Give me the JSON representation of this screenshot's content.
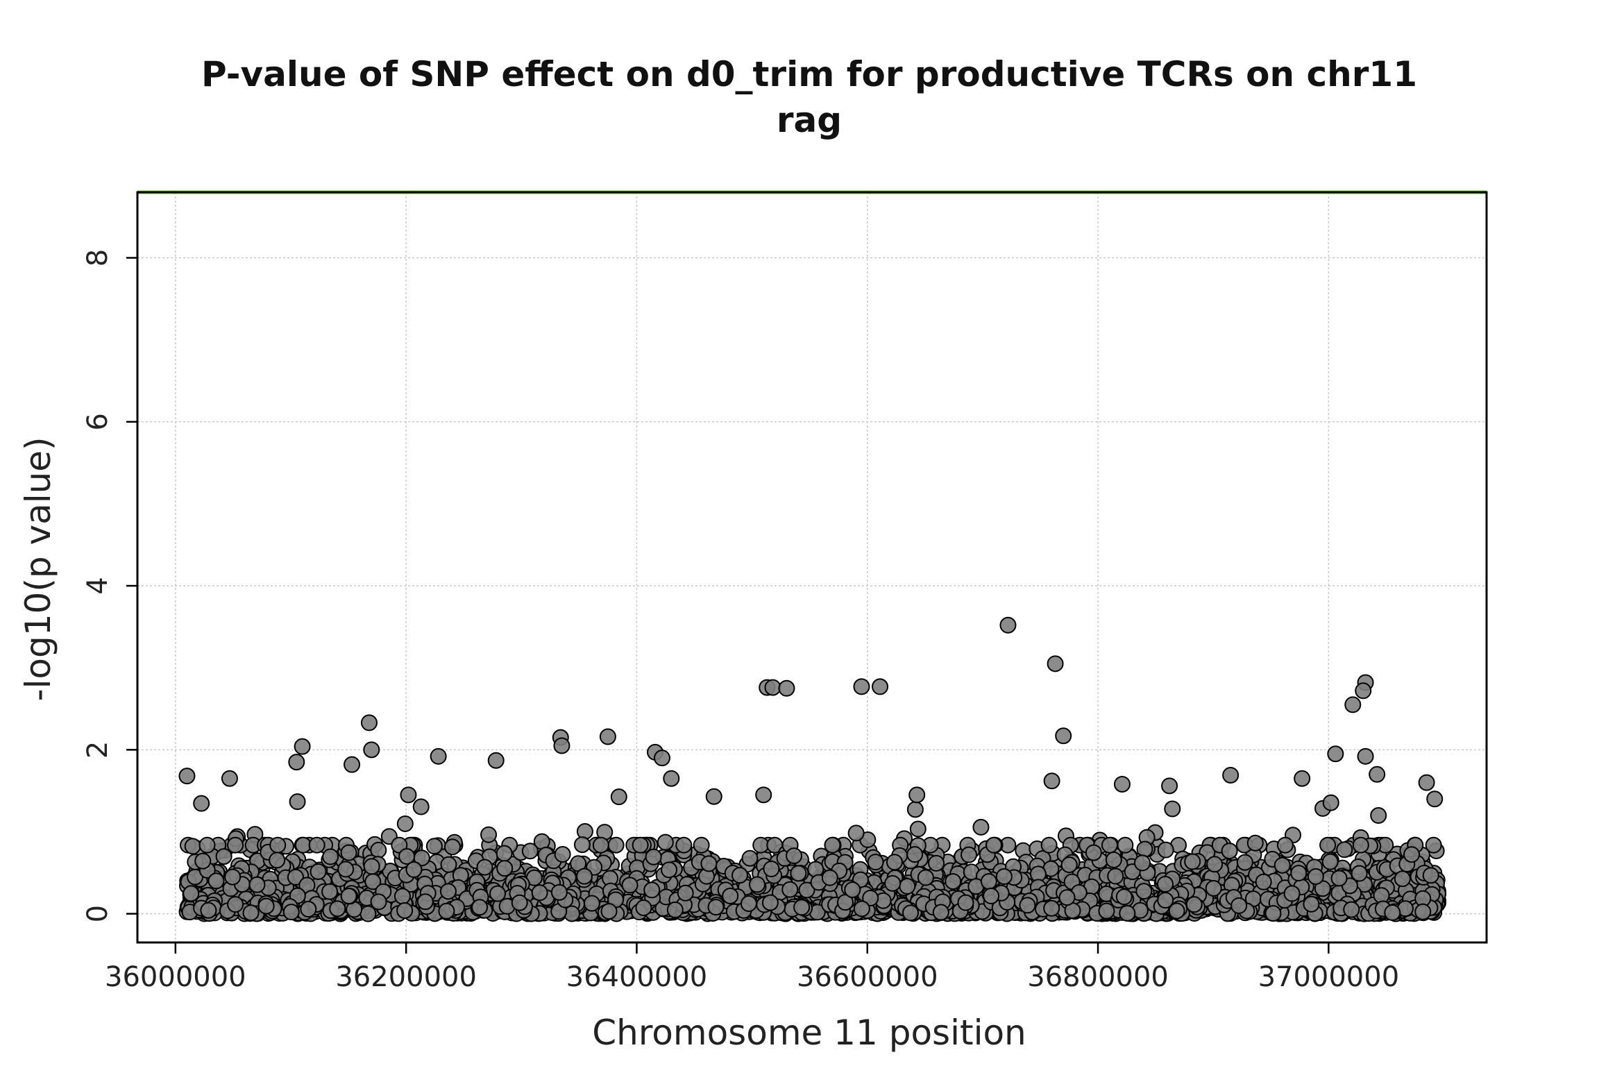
{
  "chart_data": {
    "type": "scatter",
    "title": [
      "P-value of SNP effect on d0_trim for productive TCRs on chr11",
      "rag"
    ],
    "xlabel": "Chromosome 11 position",
    "ylabel": "-log10(p value)",
    "xlim": [
      35967000,
      37137000
    ],
    "ylim": [
      -0.35,
      8.8
    ],
    "x_ticks": [
      36000000,
      36200000,
      36400000,
      36600000,
      36800000,
      37000000
    ],
    "x_tick_labels": [
      "36000000",
      "36200000",
      "36400000",
      "36600000",
      "36800000",
      "37000000"
    ],
    "y_ticks": [
      0,
      2,
      4,
      6,
      8
    ],
    "y_tick_labels": [
      "0",
      "2",
      "4",
      "6",
      "8"
    ],
    "grid": true,
    "significance_line": {
      "y": 8.8,
      "color": "#66cc00"
    },
    "point_fill": "#7f7f7f",
    "point_stroke": "#000000",
    "x_range_points": [
      36010000,
      37095000
    ],
    "notable_points": [
      {
        "x": 36722000,
        "y": 3.52
      },
      {
        "x": 36763000,
        "y": 3.05
      },
      {
        "x": 36513000,
        "y": 2.76
      },
      {
        "x": 36518000,
        "y": 2.76
      },
      {
        "x": 36530000,
        "y": 2.75
      },
      {
        "x": 36595000,
        "y": 2.77
      },
      {
        "x": 36611000,
        "y": 2.77
      },
      {
        "x": 37032000,
        "y": 2.82
      },
      {
        "x": 37030000,
        "y": 2.72
      },
      {
        "x": 37021000,
        "y": 2.55
      },
      {
        "x": 36168000,
        "y": 2.33
      },
      {
        "x": 36334000,
        "y": 2.15
      },
      {
        "x": 36375000,
        "y": 2.16
      },
      {
        "x": 36770000,
        "y": 2.17
      },
      {
        "x": 36335000,
        "y": 2.05
      },
      {
        "x": 36110000,
        "y": 2.04
      },
      {
        "x": 36170000,
        "y": 2.0
      },
      {
        "x": 36416000,
        "y": 1.97
      },
      {
        "x": 36422000,
        "y": 1.9
      },
      {
        "x": 36228000,
        "y": 1.92
      },
      {
        "x": 37006000,
        "y": 1.95
      },
      {
        "x": 37032000,
        "y": 1.92
      },
      {
        "x": 36278000,
        "y": 1.87
      },
      {
        "x": 36105000,
        "y": 1.85
      },
      {
        "x": 36153000,
        "y": 1.82
      },
      {
        "x": 36915000,
        "y": 1.69
      },
      {
        "x": 36977000,
        "y": 1.65
      },
      {
        "x": 37042000,
        "y": 1.7
      },
      {
        "x": 36010000,
        "y": 1.68
      },
      {
        "x": 36047000,
        "y": 1.65
      },
      {
        "x": 36430000,
        "y": 1.65
      },
      {
        "x": 36760000,
        "y": 1.62
      },
      {
        "x": 36821000,
        "y": 1.58
      },
      {
        "x": 36862000,
        "y": 1.56
      },
      {
        "x": 37085000,
        "y": 1.6
      },
      {
        "x": 36467000,
        "y": 1.43
      },
      {
        "x": 36202000,
        "y": 1.45
      },
      {
        "x": 36510000,
        "y": 1.45
      },
      {
        "x": 36643000,
        "y": 1.45
      },
      {
        "x": 37092000,
        "y": 1.4
      }
    ]
  }
}
